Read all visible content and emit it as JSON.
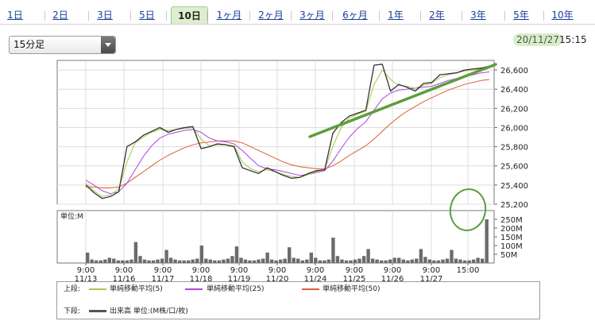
{
  "tabs": [
    "1日",
    "2日",
    "3日",
    "5日",
    "10日",
    "1ヶ月",
    "2ヶ月",
    "3ヶ月",
    "6ヶ月",
    "1年",
    "2年",
    "3年",
    "5年",
    "10年"
  ],
  "active_tab": "10日",
  "interval_select": {
    "value": "15分足"
  },
  "last_update": {
    "date": "20/11/27",
    "time": "15:15"
  },
  "colors": {
    "price": "#333333",
    "ma5": "#a6c94a",
    "ma25": "#b043e0",
    "ma50": "#d95f32",
    "volume": "#6b6b6b",
    "annotation": "#5c9e3c"
  },
  "legend": {
    "upper_label": "上段:",
    "lower_label": "下段:",
    "ma5_label": "単純移動平均(5)",
    "ma25_label": "単純移動平均(25)",
    "ma50_label": "単純移動平均(50)",
    "volume_label": "出来高 単位:(M株/口/枚)"
  },
  "chart_data": {
    "type": "line",
    "x_ticks": [
      {
        "time": "9:00",
        "date": "11/13"
      },
      {
        "time": "9:00",
        "date": "11/16"
      },
      {
        "time": "9:00",
        "date": "11/17"
      },
      {
        "time": "9:00",
        "date": "11/18"
      },
      {
        "time": "9:00",
        "date": "11/19"
      },
      {
        "time": "9:00",
        "date": "11/20"
      },
      {
        "time": "9:00",
        "date": "11/24"
      },
      {
        "time": "9:00",
        "date": "11/25"
      },
      {
        "time": "9:00",
        "date": "11/26"
      },
      {
        "time": "9:00",
        "date": "11/27"
      },
      {
        "time": "15:00",
        "date": ""
      }
    ],
    "price_panel": {
      "ylim": [
        25200,
        26700
      ],
      "yticks": [
        "25,200",
        "25,400",
        "25,600",
        "25,800",
        "26,000",
        "26,200",
        "26,400",
        "26,600"
      ],
      "series": [
        {
          "key": "price",
          "values": [
            25400,
            25320,
            25260,
            25280,
            25330,
            25800,
            25850,
            25920,
            25960,
            26000,
            25950,
            25980,
            26000,
            26010,
            25780,
            25800,
            25830,
            25820,
            25800,
            25580,
            25550,
            25520,
            25580,
            25540,
            25500,
            25470,
            25480,
            25520,
            25550,
            25560,
            25940,
            26050,
            26120,
            26150,
            26180,
            26650,
            26660,
            26380,
            26450,
            26420,
            26380,
            26460,
            26470,
            26550,
            26560,
            26570,
            26600,
            26610,
            26620,
            26640
          ]
        },
        {
          "key": "ma5",
          "values": [
            25420,
            25340,
            25280,
            25300,
            25360,
            25640,
            25840,
            25900,
            25950,
            25980,
            25970,
            25980,
            25990,
            26000,
            25880,
            25810,
            25820,
            25820,
            25810,
            25640,
            25570,
            25540,
            25560,
            25540,
            25510,
            25490,
            25480,
            25510,
            25540,
            25560,
            25800,
            26000,
            26100,
            26140,
            26170,
            26450,
            26600,
            26500,
            26440,
            26430,
            26410,
            26440,
            26460,
            26520,
            26550,
            26570,
            26590,
            26600,
            26610,
            26630
          ]
        },
        {
          "key": "ma25",
          "values": [
            25450,
            25400,
            25340,
            25310,
            25330,
            25420,
            25560,
            25700,
            25810,
            25890,
            25930,
            25950,
            25970,
            25980,
            25950,
            25890,
            25860,
            25850,
            25830,
            25760,
            25680,
            25600,
            25570,
            25560,
            25540,
            25520,
            25500,
            25510,
            25530,
            25550,
            25650,
            25780,
            25900,
            25990,
            26060,
            26180,
            26300,
            26360,
            26390,
            26400,
            26410,
            26420,
            26430,
            26460,
            26490,
            26510,
            26530,
            26550,
            26570,
            26580
          ]
        },
        {
          "key": "ma50",
          "values": [
            25380,
            25380,
            25370,
            25370,
            25380,
            25420,
            25480,
            25540,
            25600,
            25660,
            25710,
            25750,
            25790,
            25820,
            25840,
            25850,
            25860,
            25860,
            25860,
            25840,
            25800,
            25760,
            25720,
            25680,
            25640,
            25610,
            25590,
            25580,
            25570,
            25570,
            25600,
            25650,
            25710,
            25760,
            25810,
            25880,
            25960,
            26040,
            26110,
            26170,
            26220,
            26270,
            26310,
            26350,
            26390,
            26420,
            26450,
            26470,
            26490,
            26500
          ]
        }
      ]
    },
    "volume_panel": {
      "label": "単位:M",
      "ylim": [
        0,
        300
      ],
      "yticks": [
        "250M",
        "200M",
        "150M",
        "100M",
        "50M"
      ],
      "series": [
        {
          "key": "volume",
          "values": [
            60,
            20,
            15,
            15,
            20,
            30,
            25,
            15,
            15,
            15,
            20,
            120,
            40,
            20,
            15,
            15,
            20,
            25,
            75,
            30,
            20,
            15,
            15,
            15,
            20,
            25,
            100,
            25,
            20,
            15,
            15,
            20,
            25,
            40,
            95,
            30,
            20,
            15,
            15,
            20,
            25,
            60,
            20,
            15,
            20,
            25,
            90,
            30,
            25,
            15,
            20,
            60,
            30,
            15,
            15,
            20,
            145,
            40,
            20,
            15,
            15,
            20,
            25,
            40,
            80,
            25,
            20,
            15,
            15,
            20,
            30,
            30,
            20,
            15,
            20,
            25,
            80,
            35,
            20,
            15,
            15,
            20,
            25,
            75,
            25,
            20,
            15,
            15,
            20,
            30,
            25,
            250
          ]
        }
      ]
    }
  }
}
